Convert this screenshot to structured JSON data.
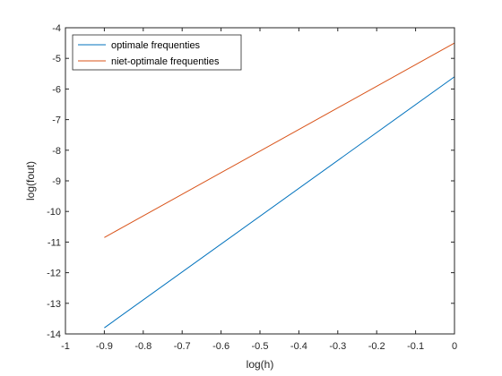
{
  "chart_data": {
    "type": "line",
    "title": "",
    "xlabel": "log(h)",
    "ylabel": "log(fout)",
    "xlim": [
      -1,
      0
    ],
    "ylim": [
      -14,
      -4
    ],
    "xticks": [
      -1,
      -0.9,
      -0.8,
      -0.7,
      -0.6,
      -0.5,
      -0.4,
      -0.3,
      -0.2,
      -0.1,
      0
    ],
    "yticks": [
      -14,
      -13,
      -12,
      -11,
      -10,
      -9,
      -8,
      -7,
      -6,
      -5,
      -4
    ],
    "xtick_labels": [
      "-1",
      "-0.9",
      "-0.8",
      "-0.7",
      "-0.6",
      "-0.5",
      "-0.4",
      "-0.3",
      "-0.2",
      "-0.1",
      "0"
    ],
    "ytick_labels": [
      "-14",
      "-13",
      "-12",
      "-11",
      "-10",
      "-9",
      "-8",
      "-7",
      "-6",
      "-5",
      "-4"
    ],
    "grid": false,
    "legend_position": "top-left",
    "series": [
      {
        "name": "optimale frequenties",
        "color": "#0072BD",
        "x": [
          -0.9,
          0
        ],
        "y": [
          -13.8,
          -5.6
        ]
      },
      {
        "name": "niet-optimale frequenties",
        "color": "#D95319",
        "x": [
          -0.9,
          0
        ],
        "y": [
          -10.85,
          -4.5
        ]
      }
    ]
  }
}
